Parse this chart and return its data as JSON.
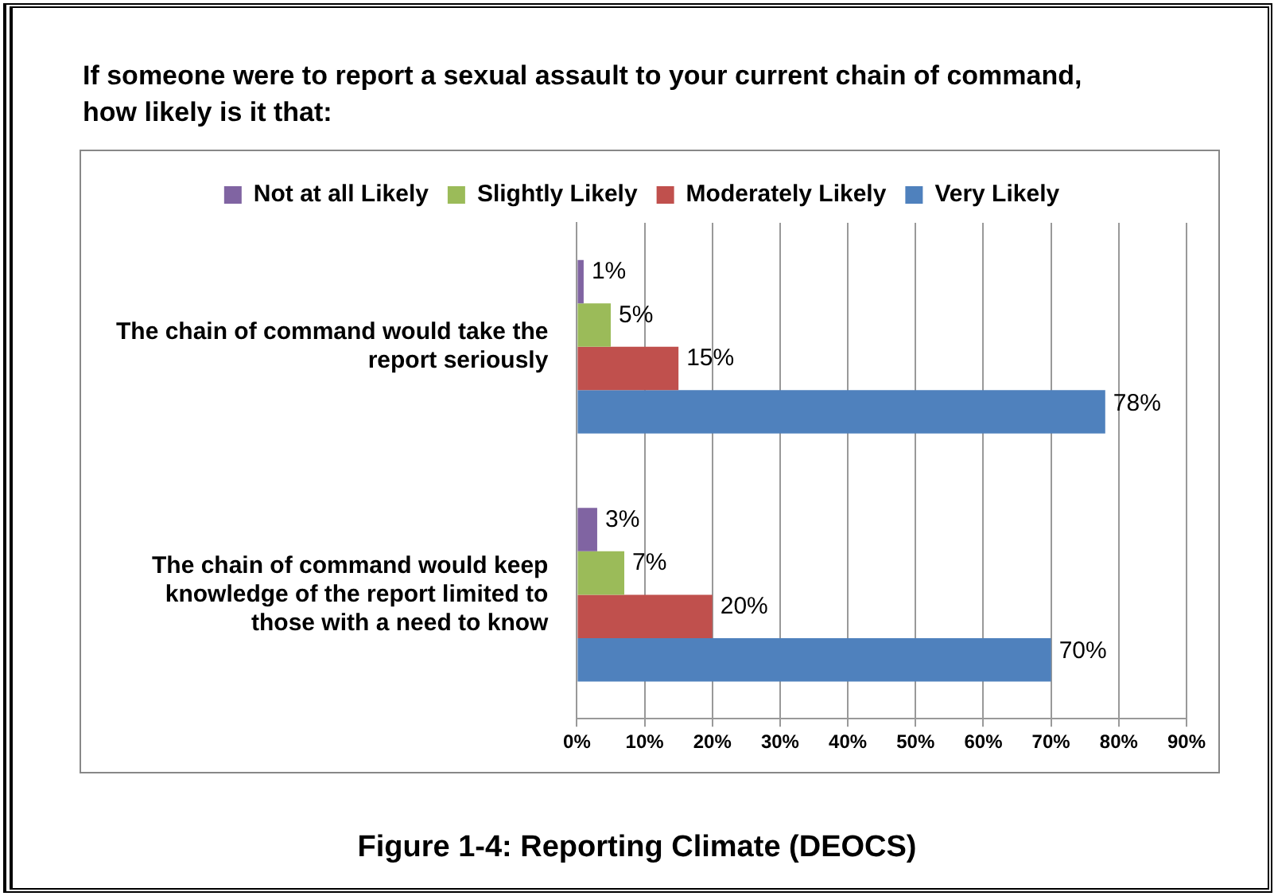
{
  "chart_data": {
    "type": "bar",
    "orientation": "horizontal",
    "title": "If someone were to report a sexual assault to your current chain of command, how likely is it that:",
    "categories": [
      "The chain of command would take the report seriously",
      "The chain of command would keep knowledge of the report limited to those with a need to know"
    ],
    "series": [
      {
        "name": "Not at all Likely",
        "color": "#8064a2",
        "values": [
          1,
          3
        ],
        "value_labels": [
          "1%",
          "3%"
        ]
      },
      {
        "name": "Slightly Likely",
        "color": "#9bbb59",
        "values": [
          5,
          7
        ],
        "value_labels": [
          "5%",
          "7%"
        ]
      },
      {
        "name": "Moderately Likely",
        "color": "#c0504d",
        "values": [
          15,
          20
        ],
        "value_labels": [
          "15%",
          "20%"
        ]
      },
      {
        "name": "Very Likely",
        "color": "#4f81bd",
        "values": [
          78,
          70
        ],
        "value_labels": [
          "78%",
          "70%"
        ]
      }
    ],
    "xlim": [
      0,
      90
    ],
    "xticks": [
      {
        "value": 0,
        "label": "0%"
      },
      {
        "value": 10,
        "label": "10%"
      },
      {
        "value": 20,
        "label": "20%"
      },
      {
        "value": 30,
        "label": "30%"
      },
      {
        "value": 40,
        "label": "40%"
      },
      {
        "value": 50,
        "label": "50%"
      },
      {
        "value": 60,
        "label": "60%"
      },
      {
        "value": 70,
        "label": "70%"
      },
      {
        "value": 80,
        "label": "80%"
      },
      {
        "value": 90,
        "label": "90%"
      }
    ],
    "grid": "x",
    "legend": "top",
    "annotations": [
      "Figure 1-4: Reporting Climate (DEOCS)"
    ]
  }
}
